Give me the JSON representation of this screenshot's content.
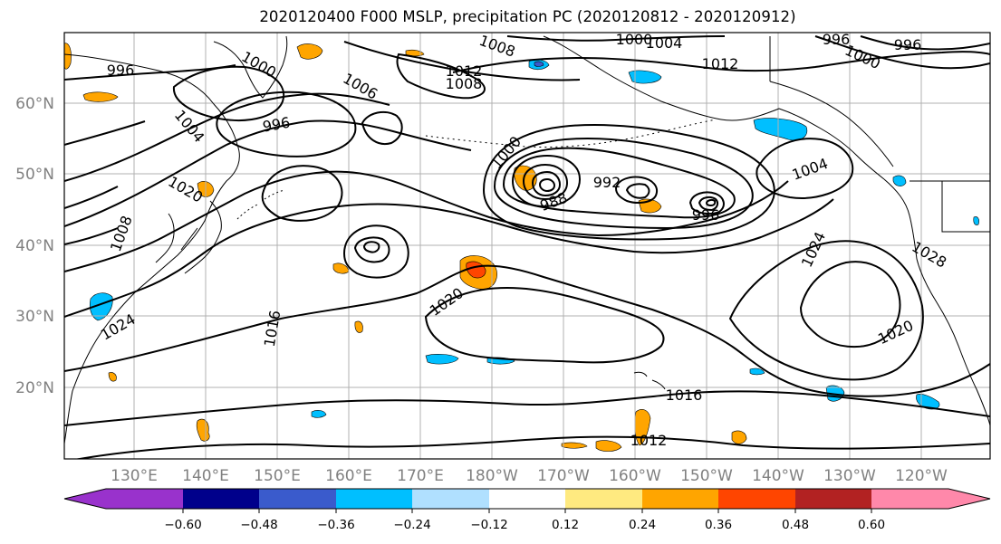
{
  "title": "2020120400 F000 MSLP, precipitation PC (2020120812 - 2020120912)",
  "map": {
    "lat_labels": [
      "60°N",
      "50°N",
      "40°N",
      "30°N",
      "20°N"
    ],
    "lon_labels": [
      "130°E",
      "140°E",
      "150°E",
      "160°E",
      "170°E",
      "180°W",
      "170°W",
      "160°W",
      "150°W",
      "140°W",
      "130°W",
      "120°W"
    ],
    "contour_labels": [
      {
        "text": "996",
        "angle": 0
      },
      {
        "text": "1000",
        "angle": 30
      },
      {
        "text": "1008",
        "angle": 20
      },
      {
        "text": "1000",
        "angle": 0
      },
      {
        "text": "1004",
        "angle": 0
      },
      {
        "text": "996",
        "angle": 0
      },
      {
        "text": "996",
        "angle": 0
      },
      {
        "text": "1000",
        "angle": 25
      },
      {
        "text": "1012",
        "angle": 0
      },
      {
        "text": "1008",
        "angle": 0
      },
      {
        "text": "1012",
        "angle": 0
      },
      {
        "text": "1006",
        "angle": 30
      },
      {
        "text": "996",
        "angle": -10
      },
      {
        "text": "1004",
        "angle": 50
      },
      {
        "text": "1000",
        "angle": -50
      },
      {
        "text": "992",
        "angle": 0
      },
      {
        "text": "988",
        "angle": -20
      },
      {
        "text": "996",
        "angle": 0
      },
      {
        "text": "1004",
        "angle": -20
      },
      {
        "text": "1020",
        "angle": 30
      },
      {
        "text": "1008",
        "angle": -70
      },
      {
        "text": "1024",
        "angle": -30
      },
      {
        "text": "1016",
        "angle": -80
      },
      {
        "text": "1020",
        "angle": -35
      },
      {
        "text": "1024",
        "angle": -65
      },
      {
        "text": "1028",
        "angle": 30
      },
      {
        "text": "1020",
        "angle": -25
      },
      {
        "text": "1016",
        "angle": 0
      },
      {
        "text": "1012",
        "angle": 0
      }
    ]
  },
  "colorbar": {
    "colors": [
      "#9932cc",
      "#00008b",
      "#3a5bcc",
      "#00bfff",
      "#b0e0ff",
      "#ffffff",
      "#ffea80",
      "#ffa500",
      "#ff4500",
      "#b22222",
      "#ff88aa"
    ],
    "ticks": [
      "−0.60",
      "−0.48",
      "−0.36",
      "−0.24",
      "−0.12",
      "0.12",
      "0.24",
      "0.36",
      "0.48",
      "0.60"
    ]
  }
}
